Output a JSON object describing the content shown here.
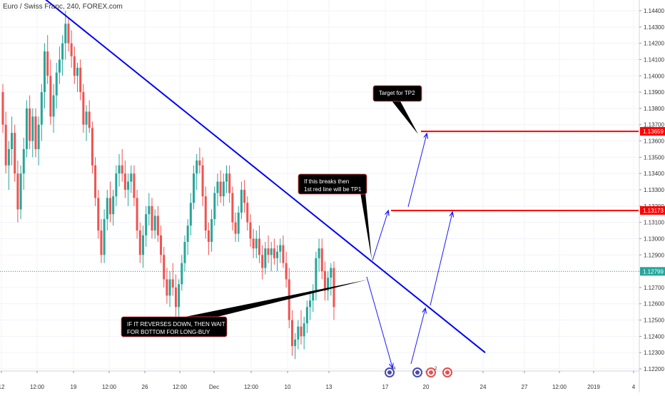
{
  "title": "Euro / Swiss Franc, 240, FOREX.com",
  "colors": {
    "up": "#26a69a",
    "down": "#ef5350",
    "trendline": "#0000ff",
    "level": "#ff0000",
    "arrow": "#1a1aff",
    "current": "#26a69a",
    "grid": "#f0f3fa",
    "axis_text": "#333333"
  },
  "chart_data": {
    "type": "candlestick",
    "ylim": [
      1.1215,
      1.145
    ],
    "y_ticks": [
      "1.14400",
      "1.14300",
      "1.14200",
      "1.14100",
      "1.14000",
      "1.13900",
      "1.13800",
      "1.13700",
      "1.13600",
      "1.13500",
      "1.13400",
      "1.13300",
      "1.13200",
      "1.13100",
      "1.13000",
      "1.12900",
      "1.12800",
      "1.12700",
      "1.12600",
      "1.12500",
      "1.12400",
      "1.12300",
      "1.12200"
    ],
    "x_ticks": [
      {
        "label": "12",
        "x": 2
      },
      {
        "label": "12:00",
        "x": 52
      },
      {
        "label": "19",
        "x": 103
      },
      {
        "label": "12:00",
        "x": 153
      },
      {
        "label": "26",
        "x": 203
      },
      {
        "label": "12:00",
        "x": 252
      },
      {
        "label": "Dec",
        "x": 300
      },
      {
        "label": "12:00",
        "x": 352
      },
      {
        "label": "10",
        "x": 403
      },
      {
        "label": "13",
        "x": 461
      },
      {
        "label": "17",
        "x": 540
      },
      {
        "label": "20",
        "x": 597
      },
      {
        "label": "24",
        "x": 677
      },
      {
        "label": "27",
        "x": 735
      },
      {
        "label": "12:00",
        "x": 784
      },
      {
        "label": "2019",
        "x": 832
      },
      {
        "label": "4",
        "x": 888
      }
    ],
    "candles": [
      [
        1.139,
        1.1395,
        1.1365,
        1.137
      ],
      [
        1.137,
        1.1378,
        1.134,
        1.1345
      ],
      [
        1.1345,
        1.136,
        1.133,
        1.1355
      ],
      [
        1.1355,
        1.1375,
        1.1345,
        1.1365
      ],
      [
        1.1365,
        1.137,
        1.1335,
        1.134
      ],
      [
        1.134,
        1.1348,
        1.131,
        1.1318
      ],
      [
        1.1318,
        1.1345,
        1.1312,
        1.134
      ],
      [
        1.134,
        1.1362,
        1.133,
        1.1355
      ],
      [
        1.1355,
        1.1385,
        1.135,
        1.138
      ],
      [
        1.138,
        1.1388,
        1.1355,
        1.136
      ],
      [
        1.136,
        1.138,
        1.135,
        1.1375
      ],
      [
        1.1375,
        1.138,
        1.135,
        1.1355
      ],
      [
        1.1355,
        1.1375,
        1.1345,
        1.137
      ],
      [
        1.137,
        1.1395,
        1.136,
        1.139
      ],
      [
        1.139,
        1.142,
        1.138,
        1.1415
      ],
      [
        1.1415,
        1.1425,
        1.1395,
        1.14
      ],
      [
        1.14,
        1.141,
        1.137,
        1.1375
      ],
      [
        1.1375,
        1.1395,
        1.1365,
        1.1388
      ],
      [
        1.1388,
        1.1408,
        1.138,
        1.1402
      ],
      [
        1.1402,
        1.1418,
        1.1395,
        1.141
      ],
      [
        1.141,
        1.1425,
        1.14,
        1.142
      ],
      [
        1.142,
        1.144,
        1.141,
        1.1432
      ],
      [
        1.1432,
        1.1436,
        1.1415,
        1.142
      ],
      [
        1.142,
        1.1428,
        1.1405,
        1.1412
      ],
      [
        1.1412,
        1.1418,
        1.1395,
        1.14
      ],
      [
        1.14,
        1.1408,
        1.139,
        1.1405
      ],
      [
        1.1405,
        1.141,
        1.1385,
        1.139
      ],
      [
        1.139,
        1.1395,
        1.1365,
        1.137
      ],
      [
        1.137,
        1.1382,
        1.136,
        1.1378
      ],
      [
        1.1378,
        1.1385,
        1.1365,
        1.1368
      ],
      [
        1.1368,
        1.1372,
        1.134,
        1.1345
      ],
      [
        1.1345,
        1.135,
        1.132,
        1.1325
      ],
      [
        1.1325,
        1.133,
        1.13,
        1.1305
      ],
      [
        1.1305,
        1.1312,
        1.1285,
        1.129
      ],
      [
        1.129,
        1.1318,
        1.1285,
        1.1312
      ],
      [
        1.1312,
        1.133,
        1.1305,
        1.1325
      ],
      [
        1.1325,
        1.1335,
        1.131,
        1.1315
      ],
      [
        1.1315,
        1.133,
        1.1308,
        1.1326
      ],
      [
        1.1326,
        1.1345,
        1.132,
        1.134
      ],
      [
        1.134,
        1.1352,
        1.1332,
        1.1345
      ],
      [
        1.1345,
        1.1355,
        1.1335,
        1.134
      ],
      [
        1.134,
        1.1348,
        1.1325,
        1.133
      ],
      [
        1.133,
        1.134,
        1.132,
        1.1335
      ],
      [
        1.1335,
        1.1345,
        1.1328,
        1.134
      ],
      [
        1.134,
        1.1345,
        1.132,
        1.1325
      ],
      [
        1.1325,
        1.133,
        1.13,
        1.1305
      ],
      [
        1.1305,
        1.131,
        1.1285,
        1.129
      ],
      [
        1.129,
        1.1308,
        1.1282,
        1.1302
      ],
      [
        1.1302,
        1.132,
        1.1295,
        1.1315
      ],
      [
        1.1315,
        1.1328,
        1.1308,
        1.132
      ],
      [
        1.132,
        1.1325,
        1.13,
        1.1305
      ],
      [
        1.1305,
        1.1318,
        1.13,
        1.1314
      ],
      [
        1.1314,
        1.132,
        1.1298,
        1.1302
      ],
      [
        1.1302,
        1.1308,
        1.1285,
        1.129
      ],
      [
        1.129,
        1.1295,
        1.127,
        1.1275
      ],
      [
        1.1275,
        1.1282,
        1.126,
        1.1265
      ],
      [
        1.1265,
        1.128,
        1.1258,
        1.1275
      ],
      [
        1.1275,
        1.1285,
        1.1265,
        1.127
      ],
      [
        1.127,
        1.1278,
        1.125,
        1.1258
      ],
      [
        1.1258,
        1.1275,
        1.1252,
        1.1272
      ],
      [
        1.1272,
        1.129,
        1.1268,
        1.1285
      ],
      [
        1.1285,
        1.1302,
        1.128,
        1.1298
      ],
      [
        1.1298,
        1.1312,
        1.129,
        1.1308
      ],
      [
        1.1308,
        1.1328,
        1.1302,
        1.1322
      ],
      [
        1.1322,
        1.1345,
        1.1318,
        1.134
      ],
      [
        1.134,
        1.1352,
        1.133,
        1.1348
      ],
      [
        1.1348,
        1.1356,
        1.134,
        1.1345
      ],
      [
        1.1345,
        1.135,
        1.132,
        1.1326
      ],
      [
        1.1326,
        1.1332,
        1.13,
        1.1305
      ],
      [
        1.1305,
        1.131,
        1.129,
        1.1298
      ],
      [
        1.1298,
        1.1318,
        1.1292,
        1.1312
      ],
      [
        1.1312,
        1.1332,
        1.1308,
        1.1328
      ],
      [
        1.1328,
        1.134,
        1.132,
        1.1335
      ],
      [
        1.1335,
        1.1342,
        1.1322,
        1.1326
      ],
      [
        1.1326,
        1.134,
        1.132,
        1.1335
      ],
      [
        1.1335,
        1.1345,
        1.1328,
        1.134
      ],
      [
        1.134,
        1.1345,
        1.1322,
        1.1328
      ],
      [
        1.1328,
        1.1332,
        1.1305,
        1.131
      ],
      [
        1.131,
        1.1316,
        1.1298,
        1.1303
      ],
      [
        1.1303,
        1.132,
        1.1298,
        1.1316
      ],
      [
        1.1316,
        1.1335,
        1.1312,
        1.133
      ],
      [
        1.133,
        1.1336,
        1.1316,
        1.1322
      ],
      [
        1.1322,
        1.1326,
        1.1305,
        1.131
      ],
      [
        1.131,
        1.1315,
        1.1295,
        1.13
      ],
      [
        1.13,
        1.1306,
        1.1288,
        1.1294
      ],
      [
        1.1294,
        1.1305,
        1.1288,
        1.13
      ],
      [
        1.13,
        1.1308,
        1.1285,
        1.129
      ],
      [
        1.129,
        1.1296,
        1.1275,
        1.1282
      ],
      [
        1.1282,
        1.1298,
        1.1278,
        1.1294
      ],
      [
        1.1294,
        1.1302,
        1.1285,
        1.129
      ],
      [
        1.129,
        1.1298,
        1.128,
        1.1294
      ],
      [
        1.1294,
        1.13,
        1.1284,
        1.1288
      ],
      [
        1.1288,
        1.1296,
        1.128,
        1.1292
      ],
      [
        1.1292,
        1.13,
        1.1285,
        1.1296
      ],
      [
        1.1296,
        1.1302,
        1.1282,
        1.1285
      ],
      [
        1.1285,
        1.1292,
        1.127,
        1.1275
      ],
      [
        1.1275,
        1.1282,
        1.1245,
        1.125
      ],
      [
        1.125,
        1.1256,
        1.1228,
        1.1234
      ],
      [
        1.1234,
        1.1242,
        1.1226,
        1.1238
      ],
      [
        1.1238,
        1.125,
        1.1232,
        1.1246
      ],
      [
        1.1246,
        1.1256,
        1.1235,
        1.124
      ],
      [
        1.124,
        1.1252,
        1.1232,
        1.1248
      ],
      [
        1.1248,
        1.1262,
        1.1242,
        1.1258
      ],
      [
        1.1258,
        1.1268,
        1.125,
        1.1262
      ],
      [
        1.1262,
        1.1272,
        1.1255,
        1.1268
      ],
      [
        1.1268,
        1.1292,
        1.1262,
        1.1288
      ],
      [
        1.1288,
        1.13,
        1.128,
        1.1294
      ],
      [
        1.1294,
        1.13,
        1.1275,
        1.128
      ],
      [
        1.128,
        1.1286,
        1.1262,
        1.1268
      ],
      [
        1.1268,
        1.128,
        1.1262,
        1.1276
      ],
      [
        1.1276,
        1.1285,
        1.1265,
        1.1282
      ],
      [
        1.1282,
        1.1286,
        1.125,
        1.1258
      ]
    ],
    "trendline": {
      "x1": 55,
      "y1": 1.145,
      "x2": 680,
      "y2": 1.123
    },
    "levels": [
      {
        "label": "1.13659",
        "price": 1.13659,
        "x1": 590
      },
      {
        "label": "1.13173",
        "price": 1.13173,
        "x1": 548
      }
    ],
    "current_price": {
      "label": "1.12799",
      "price": 1.12799
    },
    "annotations": [
      {
        "text_lines": [
          "Target for TP2"
        ]
      },
      {
        "text_lines": [
          "If this breaks then",
          "1st red line will be TP1"
        ]
      },
      {
        "text_lines": [
          "IF IT REVERSES DOWN, THEN WAIT",
          "FOR BOTTOM FOR LONG-BUY"
        ]
      }
    ],
    "event_badges": [
      "4",
      "2"
    ]
  }
}
